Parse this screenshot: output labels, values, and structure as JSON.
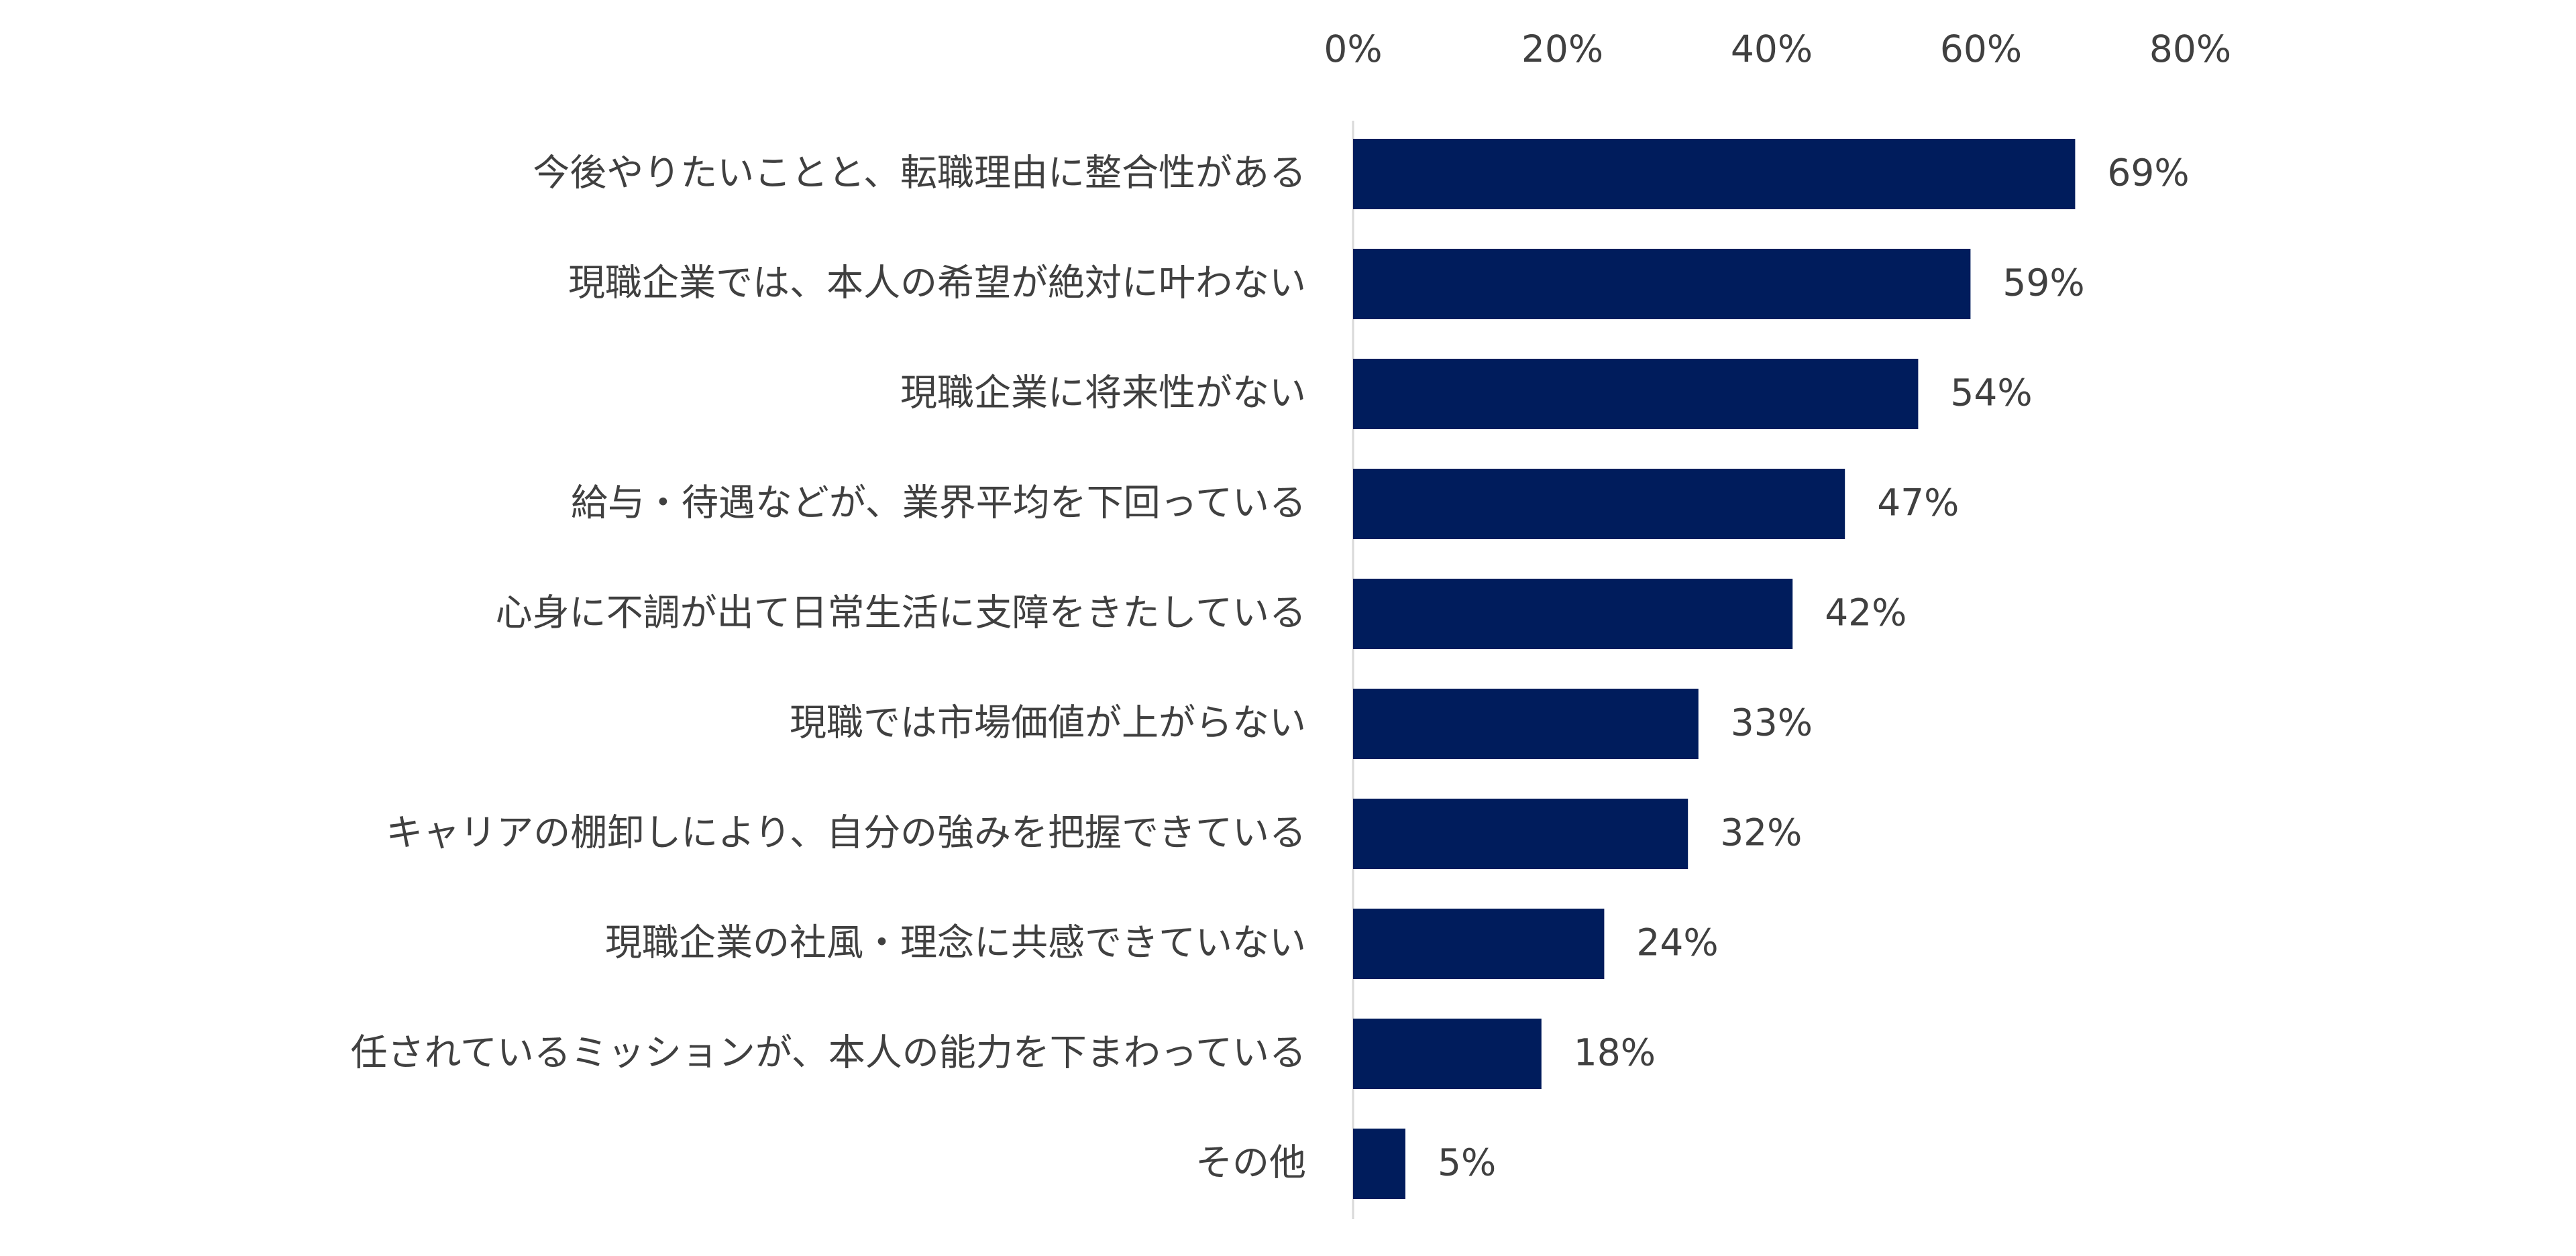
{
  "chart_data": {
    "type": "bar",
    "orientation": "horizontal",
    "title": "",
    "xlabel": "",
    "ylabel": "",
    "categories": [
      "今後やりたいことと、転職理由に整合性がある",
      "現職企業では、本人の希望が絶対に叶わない",
      "現職企業に将来性がない",
      "給与・待遇などが、業界平均を下回っている",
      "心身に不調が出て日常生活に支障をきたしている",
      "現職では市場価値が上がらない",
      "キャリアの棚卸しにより、自分の強みを把握できている",
      "現職企業の社風・理念に共感できていない",
      "任されているミッションが、本人の能力を下まわっている",
      "その他"
    ],
    "values": [
      69,
      59,
      54,
      47,
      42,
      33,
      32,
      24,
      18,
      5
    ],
    "data_labels": [
      "69%",
      "59%",
      "54%",
      "47%",
      "42%",
      "33%",
      "32%",
      "24%",
      "18%",
      "5%"
    ],
    "xlim": [
      0,
      80
    ],
    "xticks": [
      0,
      20,
      40,
      60,
      80
    ],
    "xtick_labels": [
      "0%",
      "20%",
      "40%",
      "60%",
      "80%"
    ],
    "axis_position": "top",
    "grid": false,
    "legend": "none",
    "bar_color": "#001c5c"
  }
}
